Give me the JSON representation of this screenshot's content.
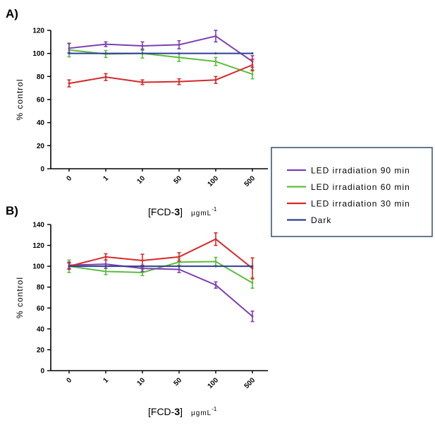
{
  "chart_data": [
    {
      "panel_label": "A)",
      "type": "line",
      "x_categories": [
        "0",
        "1",
        "10",
        "50",
        "100",
        "500"
      ],
      "ylabel": "% control",
      "ylim": [
        0,
        120
      ],
      "yticks": [
        "0",
        "20",
        "40",
        "60",
        "80",
        "100",
        "120"
      ],
      "xlabel_main": "[FCD-",
      "xlabel_bold": "3",
      "xlabel_close": "]",
      "xlabel_unit": "µgmL",
      "xlabel_exp": "-1",
      "series": [
        {
          "name": "LED irradiation 90 min",
          "color": "#7d3fb0",
          "values": [
            104.5,
            108,
            106.5,
            107.5,
            115,
            93
          ],
          "errors": [
            4,
            2,
            3.5,
            3.5,
            5,
            5
          ]
        },
        {
          "name": "LED irradiation 60 min",
          "color": "#5dbd3c",
          "values": [
            103,
            99.5,
            100,
            96.5,
            93,
            82
          ],
          "errors": [
            6,
            3,
            4,
            3.5,
            3.5,
            4
          ]
        },
        {
          "name": "LED irradiation 30 min",
          "color": "#d42a2a",
          "values": [
            74,
            79.5,
            75,
            75.5,
            77,
            90
          ],
          "errors": [
            3,
            3,
            2,
            2.5,
            3,
            5
          ]
        },
        {
          "name": "Dark",
          "color": "#2e3e96",
          "values": [
            100,
            100,
            100,
            100,
            100,
            100
          ],
          "errors": [
            0,
            0,
            0,
            0,
            0,
            0
          ]
        }
      ]
    },
    {
      "panel_label": "B)",
      "type": "line",
      "x_categories": [
        "0",
        "1",
        "10",
        "50",
        "100",
        "500"
      ],
      "ylabel": "% control",
      "ylim": [
        0,
        140
      ],
      "yticks": [
        "0",
        "20",
        "40",
        "60",
        "80",
        "100",
        "120",
        "140"
      ],
      "xlabel_main": "[FCD-",
      "xlabel_bold": "3",
      "xlabel_close": "]",
      "xlabel_unit": "µgmL",
      "xlabel_exp": "-1",
      "series": [
        {
          "name": "LED irradiation 90 min",
          "color": "#7d3fb0",
          "values": [
            101,
            102,
            98,
            97,
            82,
            52
          ],
          "errors": [
            3,
            4,
            3,
            3,
            3,
            5
          ]
        },
        {
          "name": "LED irradiation 60 min",
          "color": "#5dbd3c",
          "values": [
            100,
            95,
            94,
            104,
            104.5,
            84
          ],
          "errors": [
            6,
            3,
            3,
            3,
            4,
            5
          ]
        },
        {
          "name": "LED irradiation 30 min",
          "color": "#d42a2a",
          "values": [
            100,
            109,
            105.5,
            109,
            126,
            98
          ],
          "errors": [
            3,
            3,
            6,
            4,
            6,
            10
          ]
        },
        {
          "name": "Dark",
          "color": "#2e3e96",
          "values": [
            100,
            100,
            100,
            100,
            100,
            100
          ],
          "errors": [
            0,
            0,
            0,
            0,
            0,
            0
          ]
        }
      ]
    }
  ],
  "legend": {
    "placement": "right",
    "items": [
      {
        "label": "LED irradiation 90 min",
        "color": "#7d3fb0"
      },
      {
        "label": "LED irradiation 60 min",
        "color": "#5dbd3c"
      },
      {
        "label": "LED irradiation 30 min",
        "color": "#d42a2a"
      },
      {
        "label": "Dark",
        "color": "#2e3e96"
      }
    ],
    "border_color": "#2f4f6f"
  }
}
